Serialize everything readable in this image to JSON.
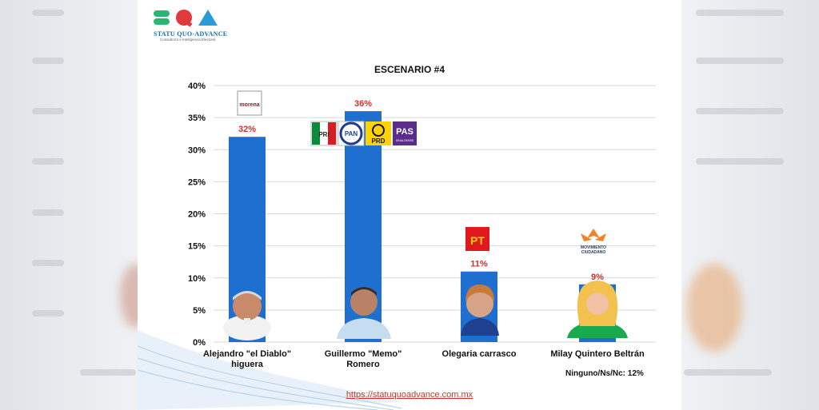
{
  "brand": {
    "name": "STATU QUO-ADVANCE",
    "tagline": "Consultoría e Inteligencia Electoral"
  },
  "footer": {
    "url": "https://statuquoadvance.com.mx",
    "note": "Ninguno/Ns/Nc: 12%"
  },
  "colors": {
    "bar": "#1f6fd1",
    "value_label": "#d0312d",
    "grid": "#d9d9d9"
  },
  "party_logos": {
    "morena": "morena",
    "coalition": [
      "PRI",
      "PAN",
      "PRD",
      "PAS"
    ],
    "coalition_pas_sub": "SINALOENSE",
    "pt": "PT",
    "mc": [
      "MOVIMIENTO",
      "CIUDADANO"
    ]
  },
  "chart_data": {
    "type": "bar",
    "title": "ESCENARIO #4",
    "categories": [
      [
        "Alejandro \"el Diablo\"",
        "higuera"
      ],
      [
        "Guillermo \"Memo\"",
        "Romero"
      ],
      [
        "Olegaria carrasco"
      ],
      [
        "Milay Quintero Beltrán"
      ]
    ],
    "values": [
      32,
      36,
      11,
      9
    ],
    "value_labels": [
      "32%",
      "36%",
      "11%",
      "9%"
    ],
    "ylim": [
      0,
      40
    ],
    "yticks": [
      0,
      5,
      10,
      15,
      20,
      25,
      30,
      35,
      40
    ],
    "ytick_labels": [
      "0%",
      "5%",
      "10%",
      "15%",
      "20%",
      "25%",
      "30%",
      "35%",
      "40%"
    ],
    "xlabel": "",
    "ylabel": "",
    "grid": true
  }
}
